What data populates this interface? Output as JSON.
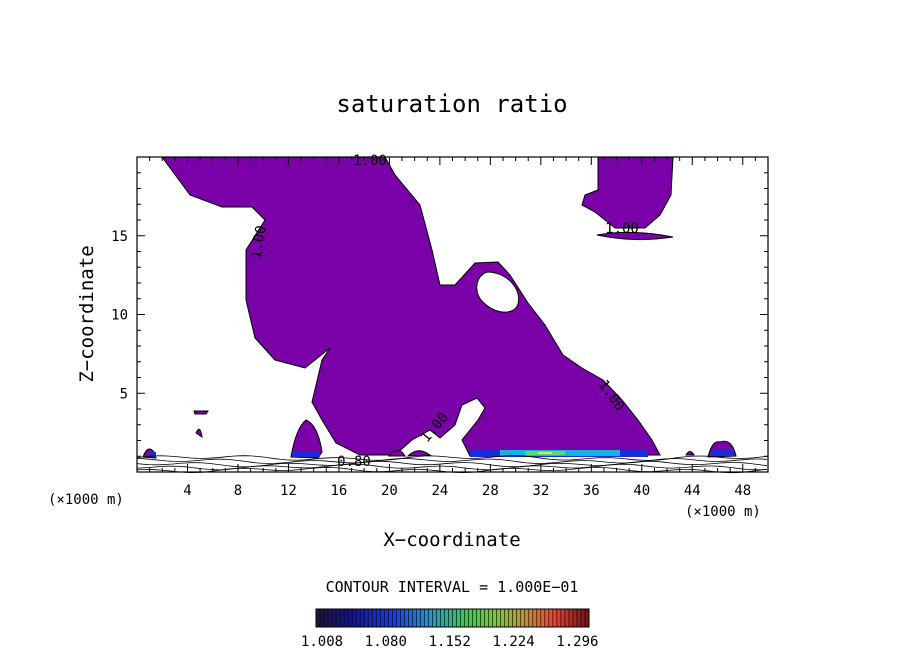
{
  "chart_data": {
    "type": "contour",
    "title": "saturation ratio",
    "xlabel": "X−coordinate",
    "ylabel": "Z−coordinate",
    "x_unit_left": "(×1000 m)",
    "x_unit_right": "(×1000 m)",
    "xlim": [
      0,
      50
    ],
    "ylim": [
      0,
      20
    ],
    "x_ticks": [
      4,
      8,
      12,
      16,
      20,
      24,
      28,
      32,
      36,
      40,
      44,
      48
    ],
    "y_ticks": [
      5,
      10,
      15
    ],
    "contour_labels": [
      "1.00",
      "1.00",
      "1.00",
      "1.00",
      "1.00",
      "0.80"
    ],
    "contour_interval_text": "CONTOUR INTERVAL = 1.000E−01",
    "colorbar_labels": [
      "1.008",
      "1.080",
      "1.152",
      "1.224",
      "1.296"
    ],
    "colors": {
      "fill": "#7a00a8",
      "line": "#000000"
    }
  }
}
